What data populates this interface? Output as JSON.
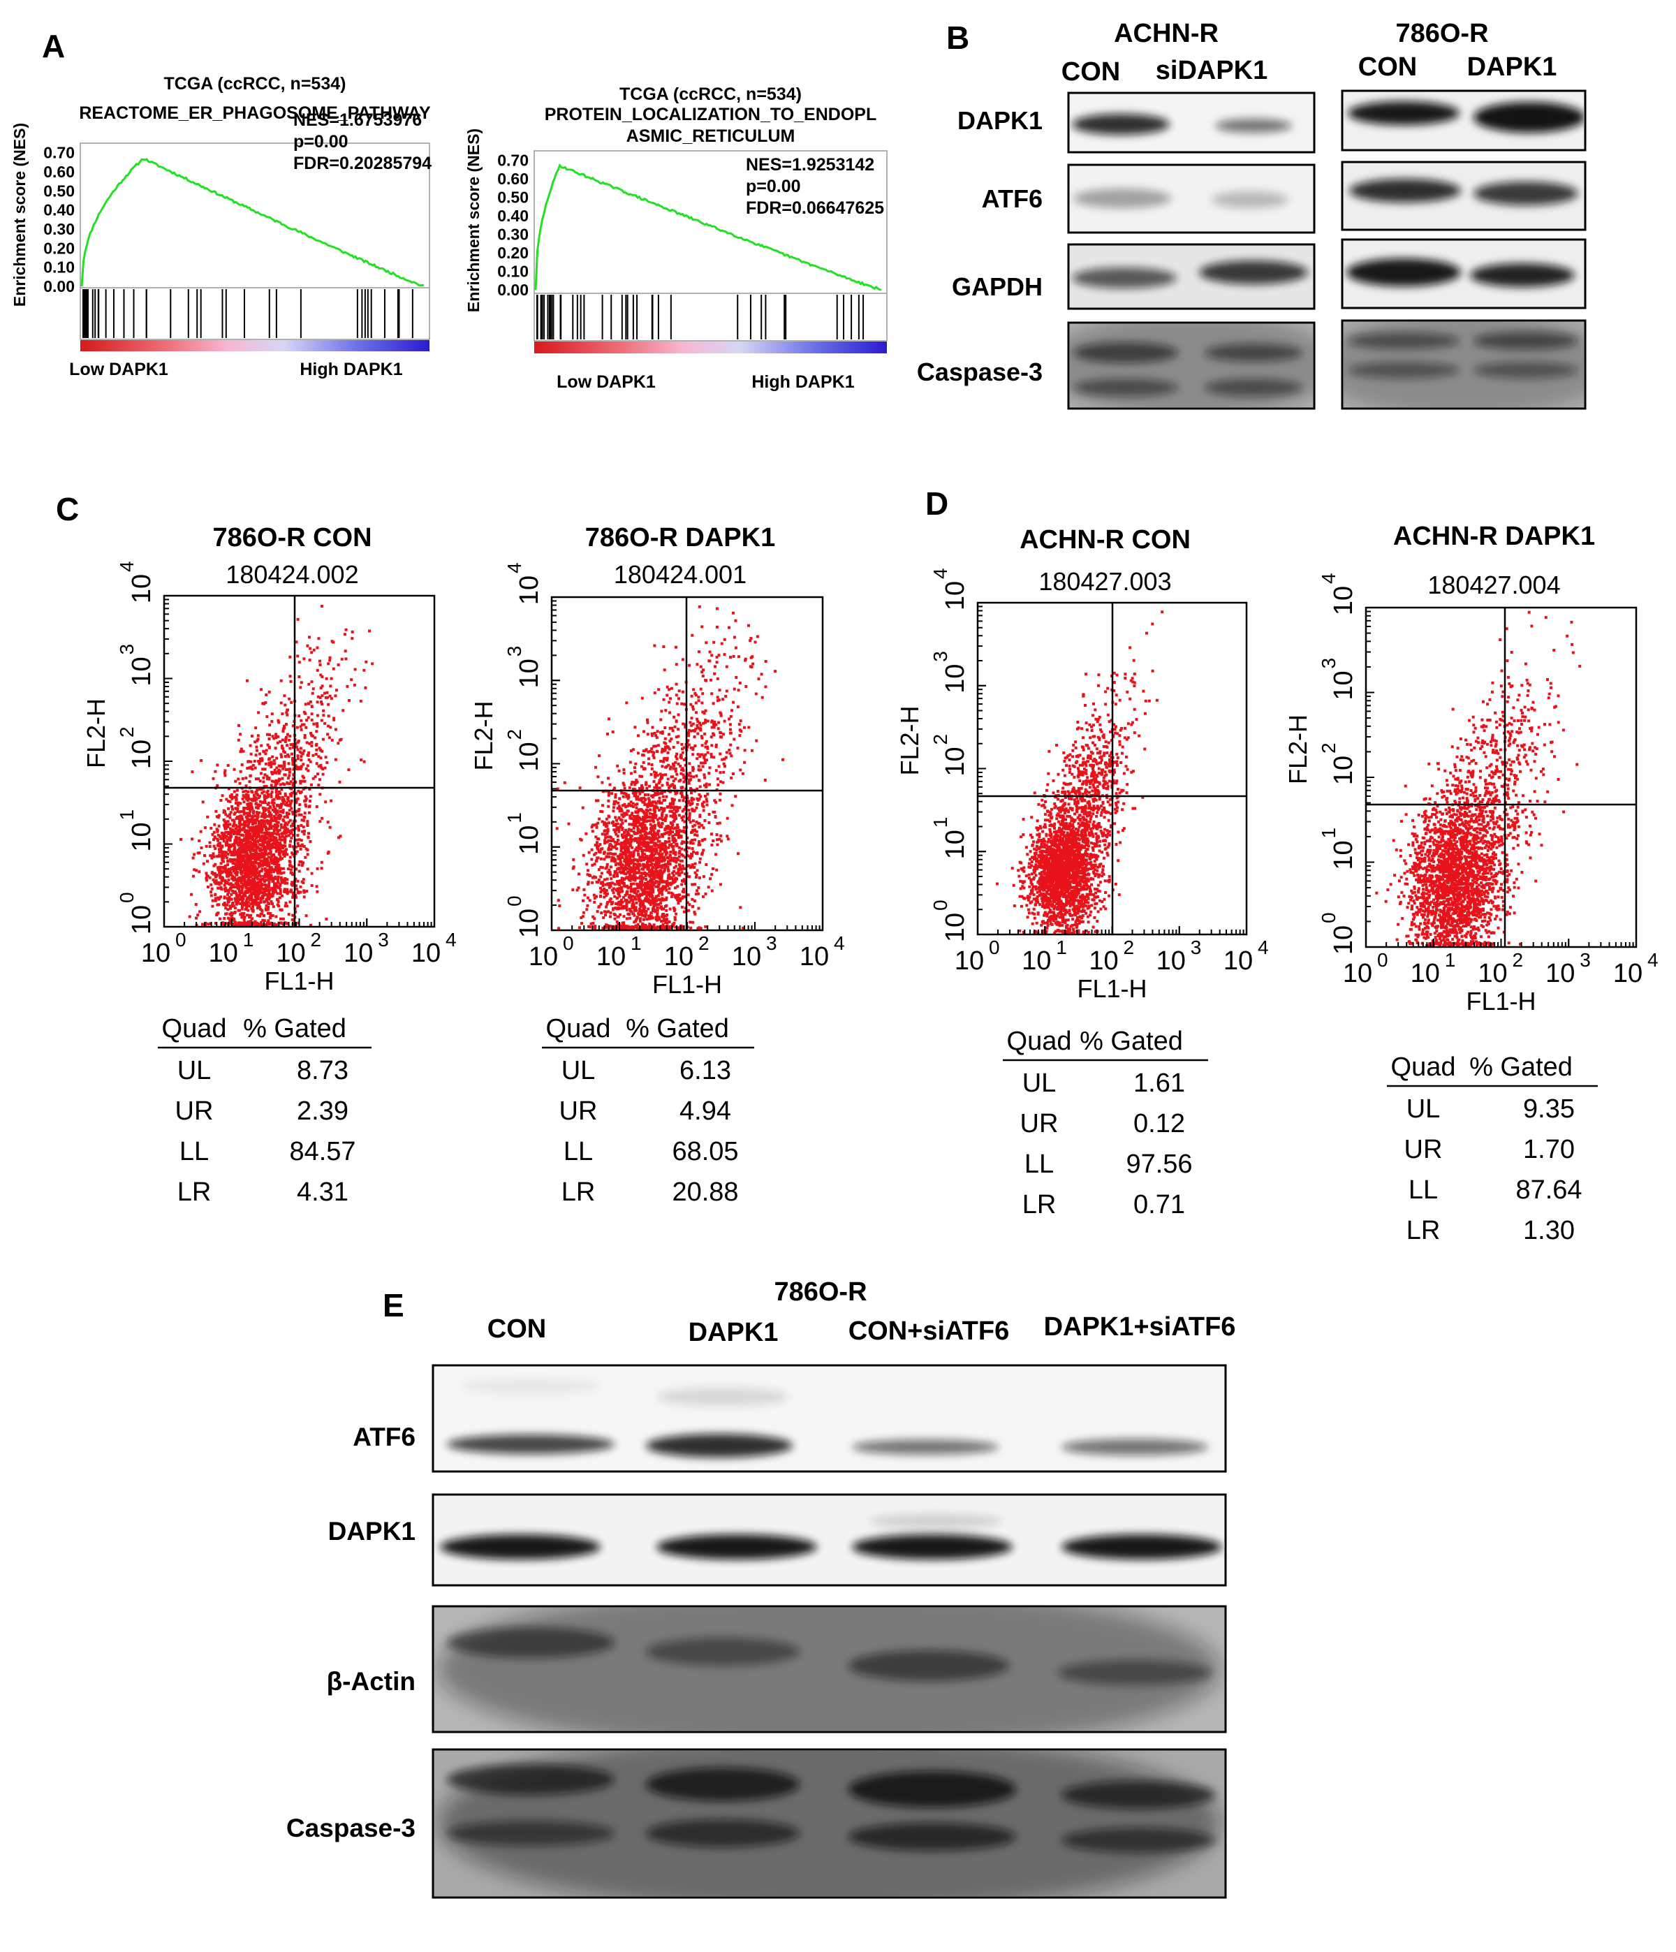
{
  "figure": {
    "panel_letters": [
      "A",
      "B",
      "C",
      "D",
      "E"
    ]
  },
  "panel_a": {
    "gsea_plots": [
      {
        "dataset": "TCGA (ccRCC, n=534)",
        "title": "REACTOME_ER_PHAGOSOME_PATHWAY",
        "title_lines": [
          "REACTOME_ER_PHAGOSOME_PATHWAY"
        ],
        "ylabel": "Enrichment score (NES)",
        "stats": [
          "NES=1.6753976",
          "p=0.00",
          "FDR=0.20285794"
        ],
        "low_label": "Low DAPK1",
        "high_label": "High DAPK1"
      },
      {
        "dataset": "TCGA (ccRCC, n=534)",
        "title": "PROTEIN_LOCALIZATION_TO_ENDOPLASMIC_RETICULUM",
        "title_lines": [
          "PROTEIN_LOCALIZATION_TO_ENDOPL",
          "ASMIC_RETICULUM"
        ],
        "ylabel": "Enrichment score (NES)",
        "stats": [
          "NES=1.9253142",
          "p=0.00",
          "FDR=0.06647625"
        ],
        "low_label": "Low DAPK1",
        "high_label": "High DAPK1"
      }
    ]
  },
  "panel_b": {
    "groups": [
      {
        "cell_line": "ACHN-R",
        "lanes": [
          "CON",
          "siDAPK1"
        ]
      },
      {
        "cell_line": "786O-R",
        "lanes": [
          "CON",
          "DAPK1"
        ]
      }
    ],
    "proteins": [
      "DAPK1",
      "ATF6",
      "GAPDH",
      "Caspase-3"
    ]
  },
  "flow_plots": [
    {
      "panel": "C",
      "title": "786O-R CON",
      "file_id": "180424.002",
      "quadrants": [
        [
          "UL",
          "8.73"
        ],
        [
          "UR",
          "2.39"
        ],
        [
          "LL",
          "84.57"
        ],
        [
          "LR",
          "4.31"
        ]
      ]
    },
    {
      "panel": "C",
      "title": "786O-R DAPK1",
      "file_id": "180424.001",
      "quadrants": [
        [
          "UL",
          "6.13"
        ],
        [
          "UR",
          "4.94"
        ],
        [
          "LL",
          "68.05"
        ],
        [
          "LR",
          "20.88"
        ]
      ]
    },
    {
      "panel": "D",
      "title": "ACHN-R CON",
      "file_id": "180427.003",
      "quadrants": [
        [
          "UL",
          "1.61"
        ],
        [
          "UR",
          "0.12"
        ],
        [
          "LL",
          "97.56"
        ],
        [
          "LR",
          "0.71"
        ]
      ]
    },
    {
      "panel": "D",
      "title": "ACHN-R DAPK1",
      "file_id": "180427.004",
      "quadrants": [
        [
          "UL",
          "9.35"
        ],
        [
          "UR",
          "1.70"
        ],
        [
          "LL",
          "87.64"
        ],
        [
          "LR",
          "1.30"
        ]
      ]
    }
  ],
  "flow_common": {
    "xlabel": "FL1-H",
    "ylabel": "FL2-H",
    "tick_base": "10",
    "tick_exponents": [
      "0",
      "1",
      "2",
      "3",
      "4"
    ],
    "table_headers": [
      "Quad",
      "% Gated"
    ],
    "dot_color": "#e8121a"
  },
  "panel_e": {
    "cell_line": "786O-R",
    "lanes": [
      "CON",
      "DAPK1",
      "CON+siATF6",
      "DAPK1+siATF6"
    ],
    "proteins": [
      "ATF6",
      "DAPK1",
      "β-Actin",
      "Caspase-3"
    ]
  }
}
